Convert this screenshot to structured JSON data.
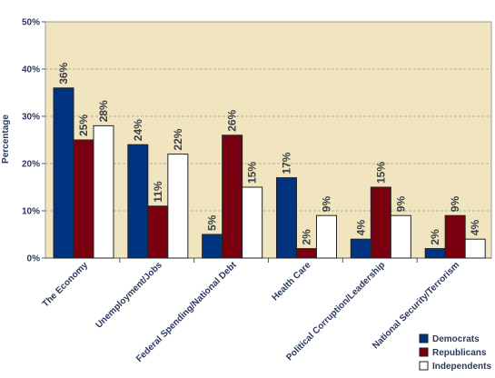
{
  "chart_data": {
    "type": "bar",
    "ylabel": "Percentage",
    "ylim": [
      0,
      50
    ],
    "yticks": [
      "0%",
      "10%",
      "20%",
      "30%",
      "40%",
      "50%"
    ],
    "categories": [
      "The Economy",
      "Unemployment/Jobs",
      "Federal Spending/National Debt",
      "Health Care",
      "Political Corruption/Leadership",
      "National Security/Terrorism"
    ],
    "series": [
      {
        "name": "Democrats",
        "color": "#003380",
        "values": [
          36,
          24,
          5,
          17,
          4,
          2
        ],
        "labels": [
          "36%",
          "24%",
          "5%",
          "17%",
          "4%",
          "2%"
        ]
      },
      {
        "name": "Republicans",
        "color": "#7a0010",
        "values": [
          25,
          11,
          26,
          2,
          15,
          9
        ],
        "labels": [
          "25%",
          "11%",
          "26%",
          "2%",
          "15%",
          "9%"
        ]
      },
      {
        "name": "Independents",
        "color": "#ffffff",
        "values": [
          28,
          22,
          15,
          9,
          9,
          4
        ],
        "labels": [
          "28%",
          "22%",
          "15%",
          "9%",
          "9%",
          "4%"
        ]
      }
    ],
    "grid": true,
    "legend_position": "bottom-right",
    "plot_background": "#f1e5c0"
  }
}
